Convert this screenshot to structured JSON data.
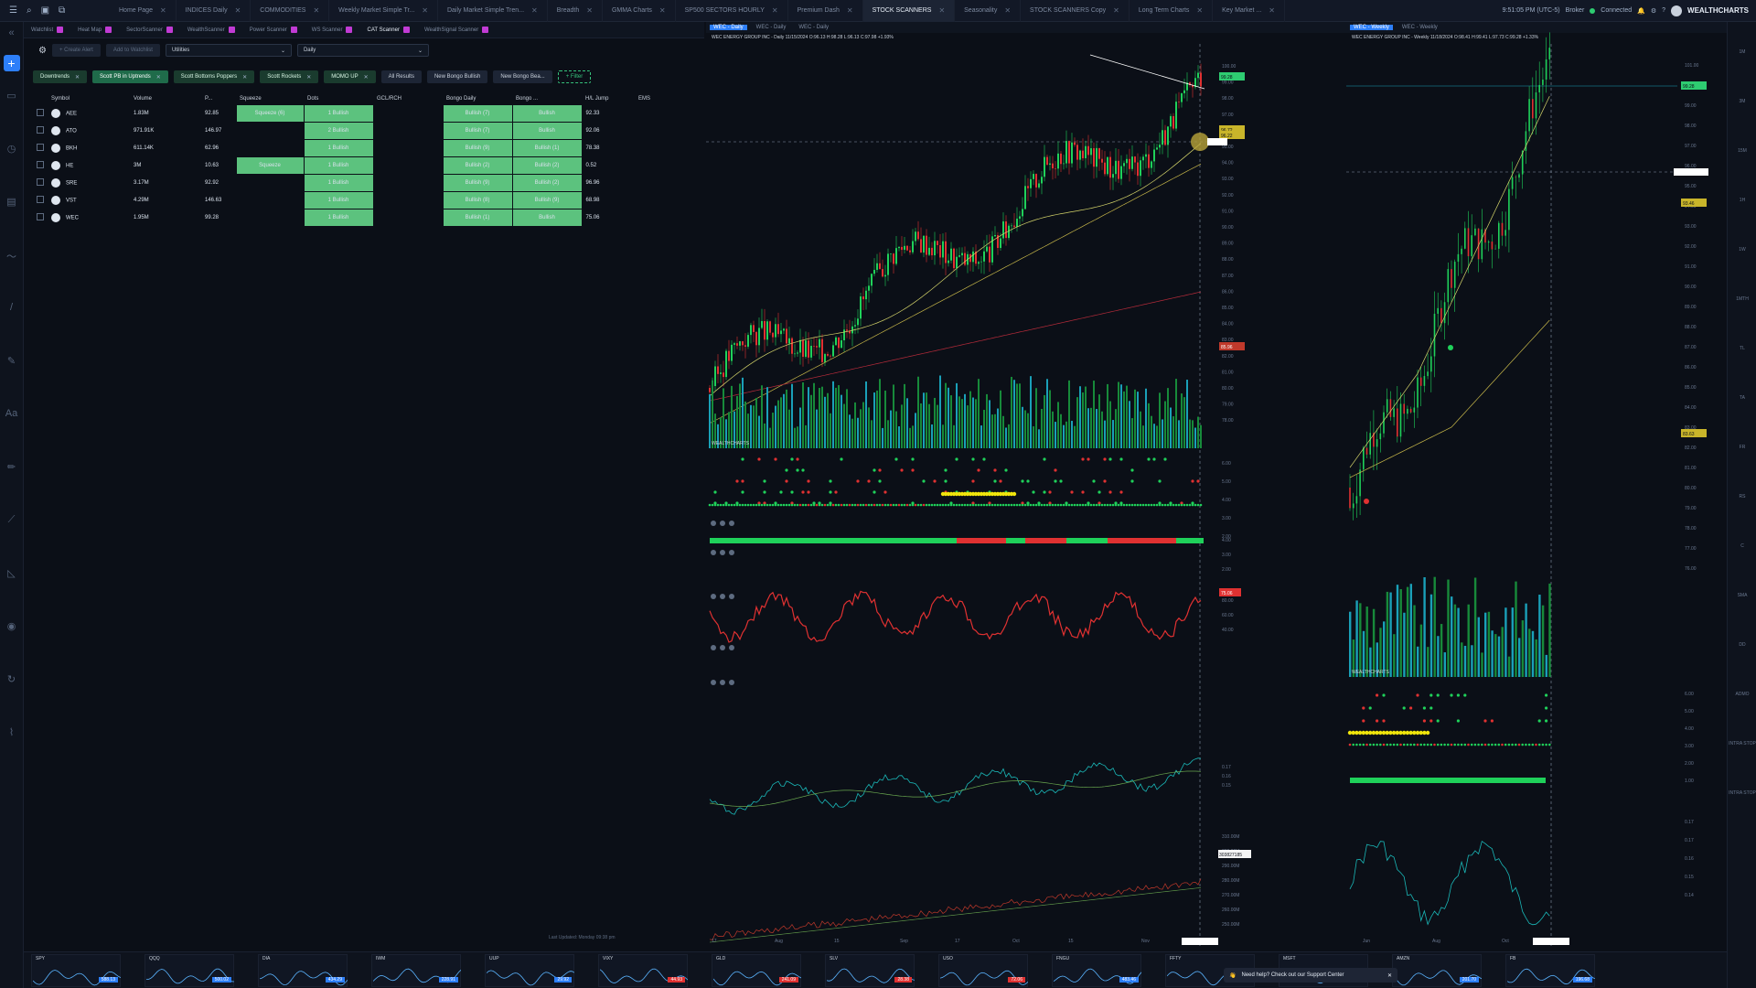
{
  "app": {
    "brand": "WEALTHCHARTS"
  },
  "tabs": [
    {
      "label": "Home Page"
    },
    {
      "label": "INDICES Daily"
    },
    {
      "label": "COMMODITIES"
    },
    {
      "label": "Weekly Market Simple Tr..."
    },
    {
      "label": "Daily Market Simple Tren..."
    },
    {
      "label": "Breadth"
    },
    {
      "label": "GMMA Charts"
    },
    {
      "label": "SP500 SECTORS HOURLY"
    },
    {
      "label": "Premium Dash"
    },
    {
      "label": "STOCK SCANNERS"
    },
    {
      "label": "Seasonality"
    },
    {
      "label": "STOCK SCANNERS Copy"
    },
    {
      "label": "Long Term Charts"
    },
    {
      "label": "Key Market ..."
    }
  ],
  "status": {
    "time": "9:51:05 PM (UTC-5)",
    "broker": "Broker",
    "connection": "Connected"
  },
  "subtabs": [
    {
      "label": "Watchlist"
    },
    {
      "label": "Heat Map"
    },
    {
      "label": "SectorScanner"
    },
    {
      "label": "WealthScanner"
    },
    {
      "label": "Power Scanner"
    },
    {
      "label": "WS Scanner"
    },
    {
      "label": "CAT Scanner"
    },
    {
      "label": "WealthSignal Scanner"
    }
  ],
  "scanner": {
    "create_alert": "+ Create Alert",
    "add_watchlist": "Add to Watchlist",
    "sector_select": "Utilities",
    "timeframe_select": "Daily",
    "filters": [
      "Downtrends",
      "Scott PB in Uptrends",
      "Scott Bottoms Poppers",
      "Scott Rockets",
      "MOMO UP"
    ],
    "filter_buttons": [
      "All Results",
      "New Bongo Bullish",
      "New Bongo Bea..."
    ],
    "add_filter": "+ Filter",
    "columns": [
      "Symbol",
      "Volume",
      "P...",
      "Squeeze",
      "Dots",
      "GCL/RCH",
      "Bongo Daily",
      "Bongo ...",
      "H/L Jump",
      "EMS"
    ],
    "rows": [
      {
        "symbol": "AEE",
        "volume": "1.83M",
        "price": "92.85",
        "squeeze": "Squeeze (6)",
        "dots": "1 Bullish",
        "gcl": "",
        "bongo_daily": "Bullish (7)",
        "bongo2": "Bullish",
        "hl": "92.33"
      },
      {
        "symbol": "ATO",
        "volume": "971.91K",
        "price": "146.97",
        "squeeze": "",
        "dots": "2 Bullish",
        "gcl": "",
        "bongo_daily": "Bullish (7)",
        "bongo2": "Bullish",
        "hl": "92.06"
      },
      {
        "symbol": "BKH",
        "volume": "611.14K",
        "price": "62.96",
        "squeeze": "",
        "dots": "1 Bullish",
        "gcl": "",
        "bongo_daily": "Bullish (9)",
        "bongo2": "Bullish (1)",
        "hl": "78.38"
      },
      {
        "symbol": "HE",
        "volume": "3M",
        "price": "10.63",
        "squeeze": "Squeeze",
        "dots": "1 Bullish",
        "gcl": "",
        "bongo_daily": "Bullish (2)",
        "bongo2": "Bullish (2)",
        "hl": "0.52"
      },
      {
        "symbol": "SRE",
        "volume": "3.17M",
        "price": "92.92",
        "squeeze": "",
        "dots": "1 Bullish",
        "gcl": "",
        "bongo_daily": "Bullish (9)",
        "bongo2": "Bullish (2)",
        "hl": "96.96"
      },
      {
        "symbol": "VST",
        "volume": "4.29M",
        "price": "146.63",
        "squeeze": "",
        "dots": "1 Bullish",
        "gcl": "",
        "bongo_daily": "Bullish (8)",
        "bongo2": "Bullish (9)",
        "hl": "68.98"
      },
      {
        "symbol": "WEC",
        "volume": "1.95M",
        "price": "99.28",
        "squeeze": "",
        "dots": "1 Bullish",
        "gcl": "",
        "bongo_daily": "Bullish (1)",
        "bongo2": "Bullish",
        "hl": "75.06"
      }
    ],
    "last_updated": "Last Updated: Monday 09:38 pm"
  },
  "chart_daily": {
    "tabs": [
      "WEC - Daily",
      "WEC - Daily",
      "WEC - Daily"
    ],
    "header": "WEC ENERGY GROUP INC - Daily 11/15/2024 O:96.13 H:98.28 L:96.13 C:97.98 +1.93%",
    "price_ticks": [
      "100.00",
      "99.00",
      "98.00",
      "97.00",
      "96.00",
      "95.00",
      "94.00",
      "93.00",
      "92.00",
      "91.00",
      "90.00",
      "89.00",
      "88.00",
      "87.00",
      "86.00",
      "85.00",
      "84.00",
      "83.00",
      "82.00",
      "81.00",
      "80.00",
      "79.00",
      "78.00"
    ],
    "tags": {
      "last": "99.28",
      "cross1": "96.72",
      "cross2": "96.22",
      "ma": "85.96"
    },
    "osc1_ticks": [
      "6.00",
      "5.00",
      "4.00",
      "3.00",
      "2.00"
    ],
    "osc2_ticks": [
      "4.00",
      "3.00",
      "2.00"
    ],
    "rsi_ticks": [
      "80.00",
      "60.00",
      "40.00"
    ],
    "rsi_tag": "75.06",
    "stoch_ticks": [
      "0.17",
      "0.16",
      "0.15"
    ],
    "vol_ticks": [
      "310.00M",
      "300.00M",
      "290.00M",
      "280.00M",
      "270.00M",
      "260.00M",
      "250.00M"
    ],
    "vol_tag": "303827185",
    "x_labels": [
      "17",
      "Aug",
      "15",
      "Sep",
      "17",
      "Oct",
      "15",
      "Nov"
    ],
    "watermark": "WEALTHCHARTS"
  },
  "chart_weekly": {
    "tabs": [
      "WEC - Weekly",
      "WEC - Weekly"
    ],
    "header": "WEC ENERGY GROUP INC - Weekly 11/18/2024 O:98.41 H:99.41 L:97.73 C:99.28 +1.33%",
    "price_ticks": [
      "101.00",
      "100.00",
      "99.00",
      "98.00",
      "97.00",
      "96.00",
      "95.00",
      "94.00",
      "93.00",
      "92.00",
      "91.00",
      "90.00",
      "89.00",
      "88.00",
      "87.00",
      "86.00",
      "85.00",
      "84.00",
      "83.00",
      "82.00",
      "81.00",
      "80.00",
      "79.00",
      "78.00",
      "77.00",
      "76.00"
    ],
    "tags": {
      "last": "99.28",
      "cross": "93.46",
      "ma": "83.63"
    },
    "osc_ticks": [
      "6.00",
      "5.00",
      "4.00",
      "3.00",
      "2.00",
      "1.00"
    ],
    "stoch_ticks": [
      "0.17",
      "0.17",
      "0.16",
      "0.15",
      "0.14"
    ],
    "x_labels": [
      "Jun",
      "Aug",
      "Oct"
    ],
    "watermark": "WEALTHCHARTS"
  },
  "rightbar_labels": [
    "1M",
    "3M",
    "15M",
    "1H",
    "1W",
    "1MTH",
    "TL",
    "TA",
    "FR",
    "RS",
    "C",
    "SMA",
    "DD",
    "ADMO",
    "INTRA STOP",
    "INTRA STOP"
  ],
  "minis": [
    {
      "sym": "SPY",
      "price": "588.13",
      "color": "#2d7ff9"
    },
    {
      "sym": "QQQ",
      "price": "500.02",
      "color": "#2d7ff9"
    },
    {
      "sym": "DIA",
      "price": "434.29",
      "color": "#2d7ff9"
    },
    {
      "sym": "IWM",
      "price": "228.91",
      "color": "#2d7ff9"
    },
    {
      "sym": "UUP",
      "price": "29.92",
      "color": "#2d7ff9"
    },
    {
      "sym": "VIXY",
      "price": "44.93",
      "color": "#e03131"
    },
    {
      "sym": "GLD",
      "price": "241.09",
      "color": "#e03131"
    },
    {
      "sym": "SLV",
      "price": "28.38",
      "color": "#e03131"
    },
    {
      "sym": "USO",
      "price": "72.06",
      "color": "#e03131"
    },
    {
      "sym": "FNGU",
      "price": "483.46",
      "color": "#2d7ff9"
    },
    {
      "sym": "FFTY",
      "price": "",
      "color": "#2d7ff9"
    },
    {
      "sym": "MSFT",
      "price": "",
      "color": "#2d7ff9"
    },
    {
      "sym": "AMZN",
      "price": "201.70",
      "color": "#2d7ff9"
    },
    {
      "sym": "FB",
      "price": "196.68",
      "color": "#2d7ff9"
    }
  ],
  "support": "Need help? Check out our Support Center"
}
